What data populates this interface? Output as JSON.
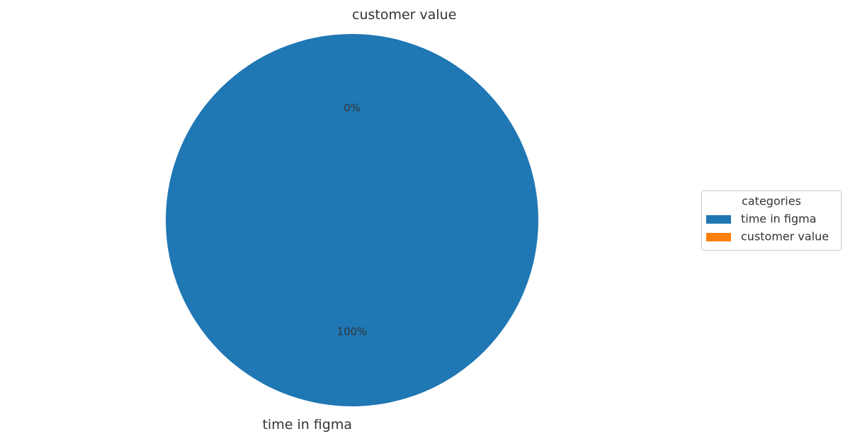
{
  "chart_data": {
    "type": "pie",
    "categories": [
      "time in figma",
      "customer value"
    ],
    "values": [
      100,
      0
    ],
    "value_labels": [
      "100%",
      "0%"
    ],
    "colors": [
      "#1f77b4",
      "#ff7f0e"
    ],
    "legend_title": "categories",
    "legend": "right"
  }
}
